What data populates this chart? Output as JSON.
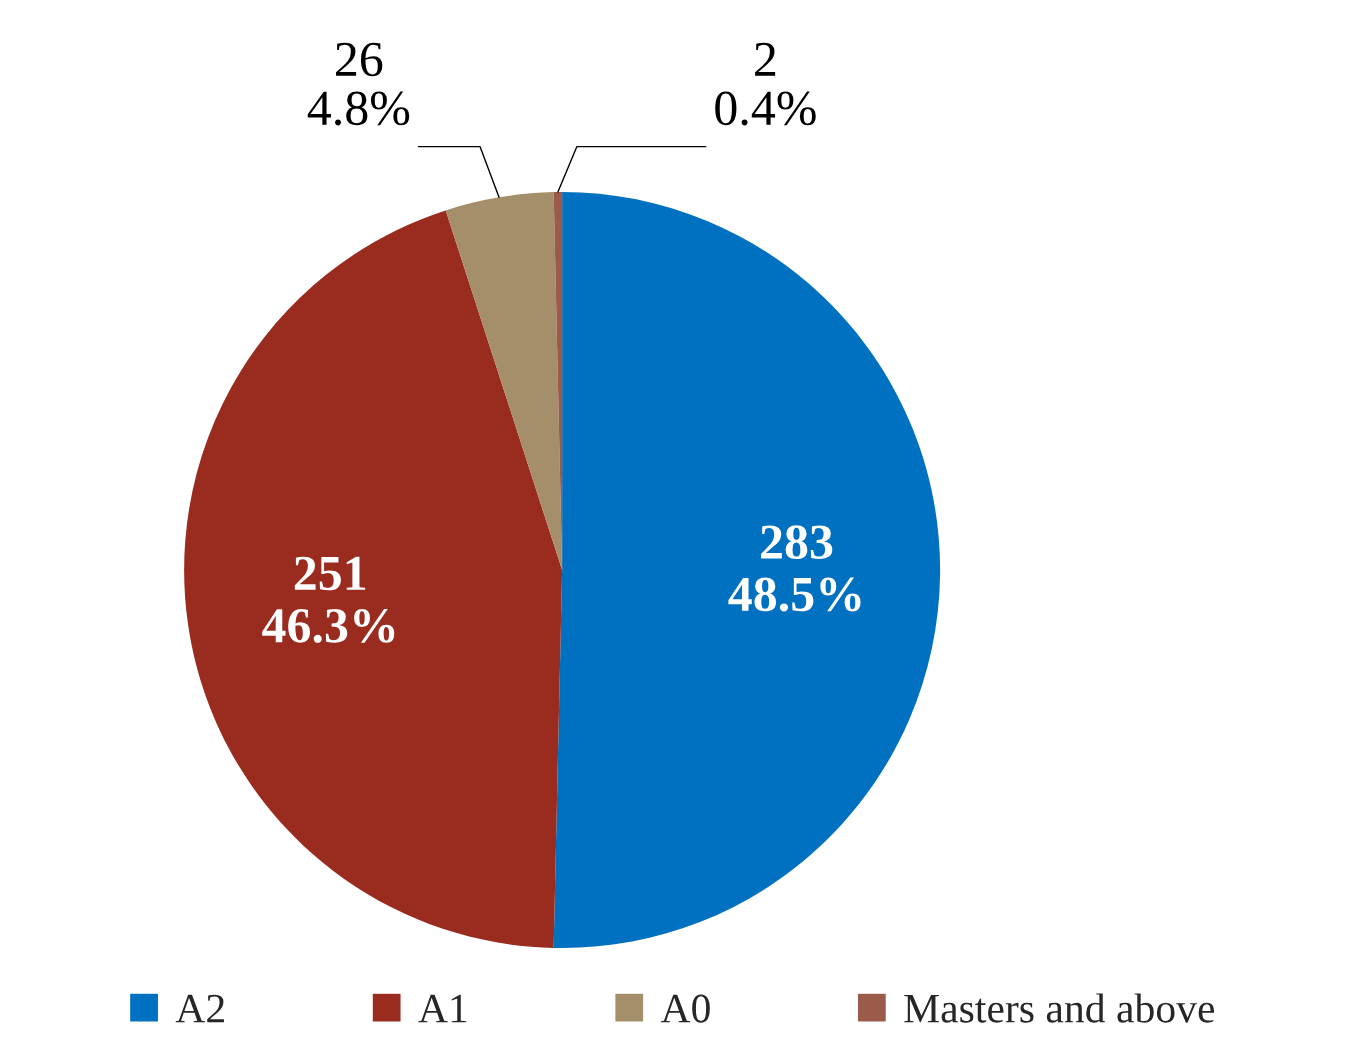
{
  "chart_data": {
    "type": "pie",
    "categories": [
      "A2",
      "A1",
      "A0",
      "Masters and above"
    ],
    "values": [
      283,
      251,
      26,
      2
    ],
    "colors": [
      "#0070c0",
      "#9a2b1f",
      "#a58f6a",
      "#9b5a4a"
    ],
    "value_labels": [
      "283\n48.5%",
      "251\n46.3%",
      "26\n4.8%",
      "2\n0.4%"
    ],
    "legend": "bottom"
  }
}
